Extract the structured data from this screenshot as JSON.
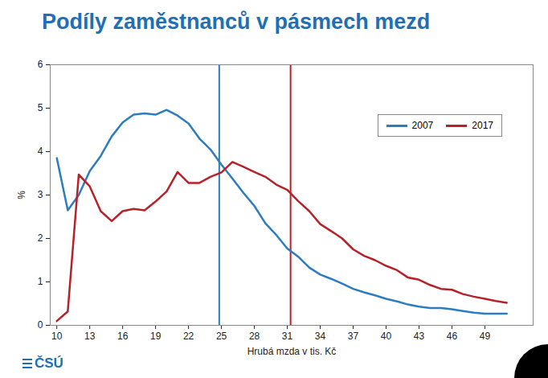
{
  "chart_data": {
    "type": "line",
    "title": "Podíly zaměstnanců v pásmech mezd",
    "x_label": "Hrubá mzda v tis. Kč",
    "y_label": "%",
    "x": [
      10,
      11,
      12,
      13,
      14,
      15,
      16,
      17,
      18,
      19,
      20,
      21,
      22,
      23,
      24,
      25,
      26,
      27,
      28,
      29,
      30,
      31,
      32,
      33,
      34,
      35,
      36,
      37,
      38,
      39,
      40,
      41,
      42,
      43,
      44,
      45,
      46,
      47,
      48,
      49,
      50,
      51
    ],
    "series": [
      {
        "name": "2007",
        "color": "#2e7cc0",
        "values": [
          3.85,
          2.65,
          3.0,
          3.55,
          3.9,
          4.35,
          4.67,
          4.85,
          4.88,
          4.85,
          4.96,
          4.83,
          4.65,
          4.3,
          4.05,
          3.7,
          3.38,
          3.05,
          2.75,
          2.35,
          2.08,
          1.77,
          1.58,
          1.33,
          1.17,
          1.07,
          0.96,
          0.84,
          0.76,
          0.69,
          0.61,
          0.55,
          0.48,
          0.43,
          0.4,
          0.4,
          0.37,
          0.33,
          0.29,
          0.27,
          0.27,
          0.27
        ]
      },
      {
        "name": "2017",
        "color": "#b5232a",
        "values": [
          0.1,
          0.32,
          3.47,
          3.2,
          2.63,
          2.4,
          2.63,
          2.68,
          2.65,
          2.85,
          3.08,
          3.53,
          3.28,
          3.28,
          3.42,
          3.52,
          3.76,
          3.65,
          3.53,
          3.42,
          3.24,
          3.12,
          2.86,
          2.63,
          2.33,
          2.17,
          2.0,
          1.75,
          1.6,
          1.5,
          1.37,
          1.27,
          1.1,
          1.05,
          0.93,
          0.84,
          0.82,
          0.72,
          0.66,
          0.61,
          0.56,
          0.52
        ]
      }
    ],
    "vlines": [
      {
        "x": 24.8,
        "color": "#2e7cc0"
      },
      {
        "x": 31.3,
        "color": "#b5232a"
      }
    ],
    "xlim": [
      9.4,
      53.4
    ],
    "xticks": [
      10,
      13,
      16,
      19,
      22,
      25,
      28,
      31,
      34,
      37,
      40,
      43,
      46,
      49
    ],
    "ylim": [
      0,
      6
    ],
    "yticks": [
      0,
      1,
      2,
      3,
      4,
      5,
      6
    ],
    "grid": false,
    "legend": "upper right",
    "logo": "ČSÚ"
  }
}
